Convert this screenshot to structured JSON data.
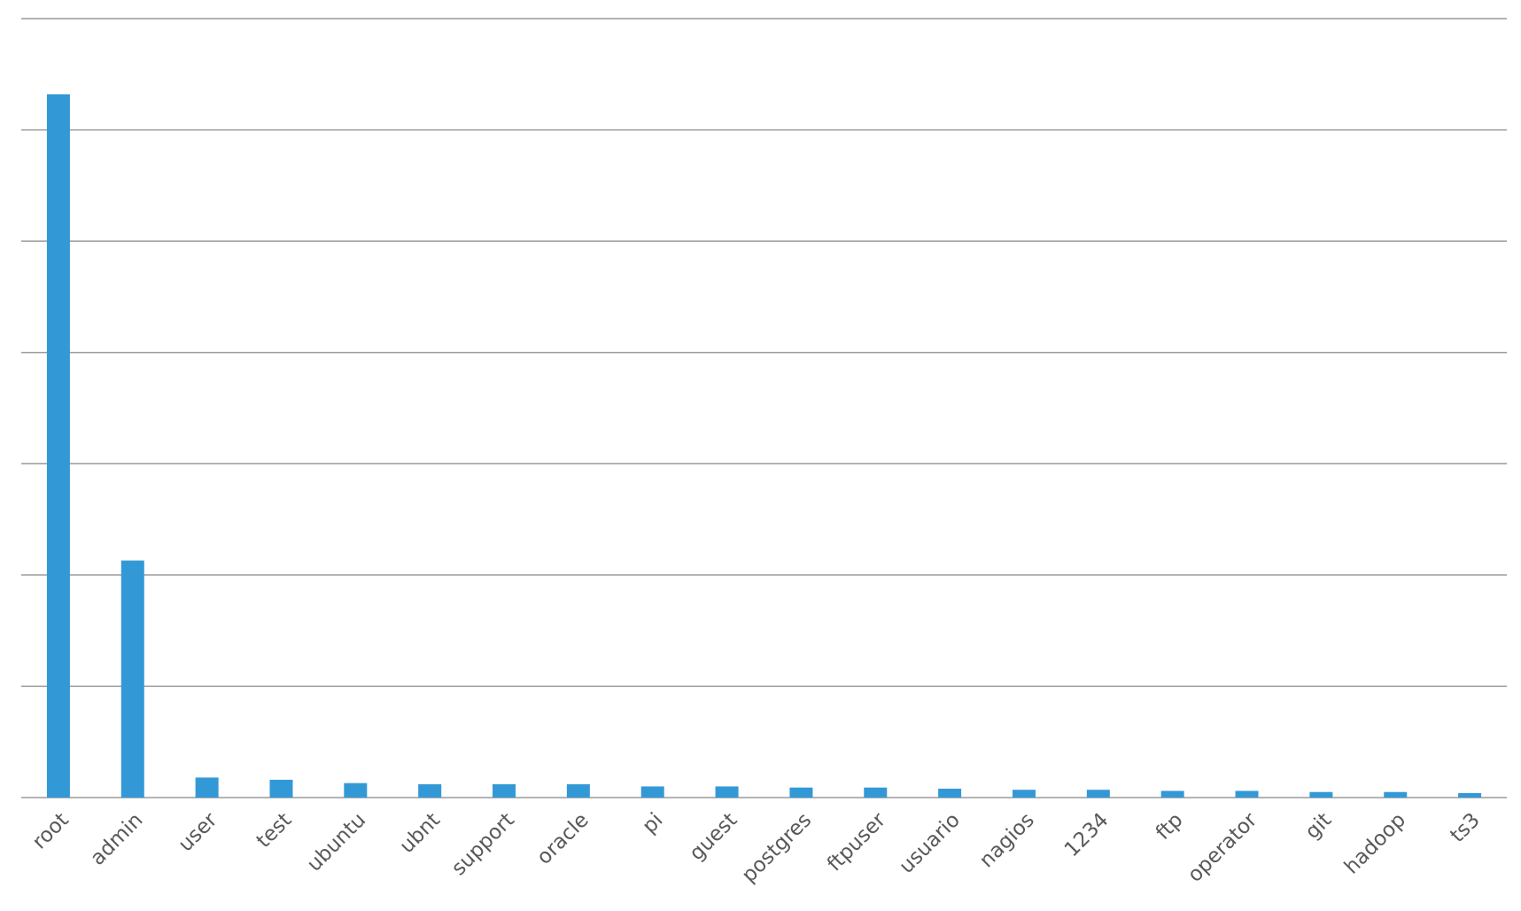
{
  "chart_data": {
    "type": "bar",
    "categories": [
      "root",
      "admin",
      "user",
      "test",
      "ubuntu",
      "ubnt",
      "support",
      "oracle",
      "pi",
      "guest",
      "postgres",
      "ftpuser",
      "usuario",
      "nagios",
      "1234",
      "ftp",
      "operator",
      "git",
      "hadoop",
      "ts3"
    ],
    "values": [
      6.32,
      2.13,
      0.18,
      0.16,
      0.13,
      0.12,
      0.12,
      0.12,
      0.1,
      0.1,
      0.09,
      0.09,
      0.08,
      0.07,
      0.07,
      0.06,
      0.06,
      0.05,
      0.05,
      0.04
    ],
    "color": "#3399d6",
    "ylim": [
      0,
      7
    ],
    "yticks": [
      0,
      1,
      2,
      3,
      4,
      5,
      6,
      7
    ],
    "grid": true
  }
}
